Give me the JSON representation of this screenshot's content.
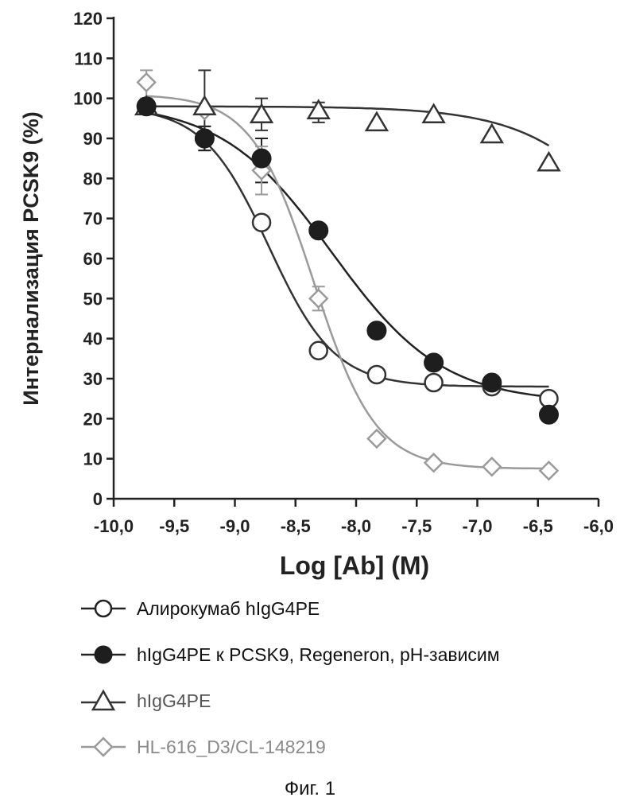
{
  "chart_data": {
    "type": "scatter",
    "title": "",
    "xlabel": "Log [Ab] (M)",
    "ylabel": "Интернализация PCSK9 (%)",
    "xlim": [
      -10.0,
      -6.0
    ],
    "ylim": [
      0,
      120
    ],
    "x_ticks": [
      -10.0,
      -9.5,
      -9.0,
      -8.5,
      -8.0,
      -7.5,
      -7.0,
      -6.5,
      -6.0
    ],
    "x_tick_labels": [
      "-10,0",
      "-9,5",
      "-9,0",
      "-8,5",
      "-8,0",
      "-7,5",
      "-7,0",
      "-6,5",
      "-6,0"
    ],
    "y_ticks": [
      0,
      10,
      20,
      30,
      40,
      50,
      60,
      70,
      80,
      90,
      100,
      110,
      120
    ],
    "y_tick_labels": [
      "0",
      "10",
      "20",
      "30",
      "40",
      "50",
      "60",
      "70",
      "80",
      "90",
      "100",
      "110",
      "120"
    ],
    "grid": false,
    "legend_position": "bottom",
    "series": [
      {
        "name": "Алирокумаб hIgG4PE",
        "marker": "open-circle",
        "color": "#333333",
        "x": [
          -9.73,
          -9.25,
          -8.78,
          -8.31,
          -7.83,
          -7.36,
          -6.88,
          -6.41
        ],
        "y": [
          98,
          90,
          69,
          37,
          31,
          29,
          28,
          25
        ],
        "fit": {
          "top": 98,
          "bottom": 28,
          "logEC50": -8.72,
          "hill": 1.6
        }
      },
      {
        "name": "hIgG4PE к PCSK9, Regeneron, pH-зависим",
        "marker": "filled-circle",
        "color": "#222222",
        "x": [
          -9.73,
          -9.25,
          -8.78,
          -8.31,
          -7.83,
          -7.36,
          -6.88,
          -6.41
        ],
        "y": [
          98,
          90,
          85,
          67,
          42,
          34,
          29,
          21
        ],
        "fit": {
          "top": 99,
          "bottom": 24,
          "logEC50": -8.2,
          "hill": 0.95
        }
      },
      {
        "name": "hIgG4PE",
        "marker": "open-triangle",
        "color": "#333333",
        "x": [
          -9.73,
          -9.25,
          -8.78,
          -8.31,
          -7.83,
          -7.36,
          -6.88,
          -6.41
        ],
        "y": [
          98,
          98,
          96,
          97,
          94,
          96,
          91,
          84
        ],
        "fit": {
          "top": 98,
          "bottom": 0,
          "logEC50": -5.35,
          "hill": 0.9
        }
      },
      {
        "name": "HL-616_D3/CL-148219",
        "marker": "open-diamond",
        "color": "#9a9a9a",
        "x": [
          -9.73,
          -9.25,
          -8.78,
          -8.31,
          -7.83,
          -7.36,
          -6.88,
          -6.41
        ],
        "y": [
          104,
          97,
          82,
          50,
          15,
          9,
          8,
          7
        ],
        "fit": {
          "top": 101,
          "bottom": 7.5,
          "logEC50": -8.35,
          "hill": 1.7
        }
      }
    ],
    "error_bars": [
      {
        "series": 0,
        "index": 1,
        "low": 87,
        "high": 93
      },
      {
        "series": 1,
        "index": 1,
        "low": 87,
        "high": 93
      },
      {
        "series": 1,
        "index": 2,
        "low": 79,
        "high": 90
      },
      {
        "series": 2,
        "index": 1,
        "low": 89,
        "high": 107
      },
      {
        "series": 2,
        "index": 2,
        "low": 92,
        "high": 100
      },
      {
        "series": 2,
        "index": 3,
        "low": 94,
        "high": 99
      },
      {
        "series": 3,
        "index": 0,
        "low": 100,
        "high": 107
      },
      {
        "series": 3,
        "index": 2,
        "low": 76,
        "high": 88
      },
      {
        "series": 3,
        "index": 3,
        "low": 47,
        "high": 53
      }
    ]
  },
  "legend": {
    "items": [
      {
        "label": "Алирокумаб hIgG4PE"
      },
      {
        "label": "hIgG4PE к PCSK9, Regeneron, pH-зависим"
      },
      {
        "label": "hIgG4PE"
      },
      {
        "label": "HL-616_D3/CL-148219"
      }
    ]
  },
  "caption": "Фиг. 1"
}
